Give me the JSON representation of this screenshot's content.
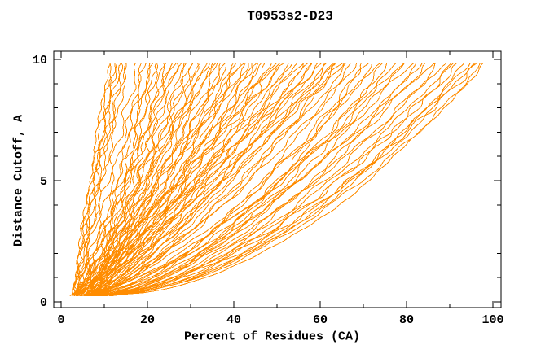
{
  "figure": {
    "title": "T0953s2-D23",
    "xlabel": "Percent of Residues (CA)",
    "ylabel": "Distance Cutoff, A"
  },
  "chart_data": {
    "type": "line",
    "title": "T0953s2-D23",
    "xlabel": "Percent of Residues (CA)",
    "ylabel": "Distance Cutoff, A",
    "xlim": [
      0,
      100
    ],
    "ylim": [
      0,
      10
    ],
    "x_major_ticks": [
      0,
      20,
      40,
      60,
      80,
      100
    ],
    "x_minor_ticks": [
      10,
      30,
      50,
      70,
      90
    ],
    "y_major_ticks": [
      0,
      5,
      10
    ],
    "y_minor_ticks": [
      1,
      2,
      3,
      4,
      6,
      7,
      8,
      9
    ],
    "grid": false,
    "legend": "none",
    "border_box": true,
    "ticks_inward_mirrored": true,
    "line_color": "#ff8c00",
    "axis_color": "#000000",
    "background": "#ffffff",
    "series_description": "Each orange curve is one predicted model of target T0953s2-D23: percent of CA residues (x) superimposable within the distance cutoff (y, Angstroms). Curves are approximated as [x_at_cutoff_0.25A, x_at_cutoff_9.85A, shape_exponent].",
    "curves": [
      [
        2.6,
        11,
        1.05
      ],
      [
        3.0,
        11.8,
        1.12
      ],
      [
        3.4,
        12.4,
        0.98
      ],
      [
        2.8,
        13,
        1.08
      ],
      [
        3.8,
        13.6,
        1.15
      ],
      [
        3.2,
        14.2,
        1.02
      ],
      [
        4.2,
        15,
        1.1
      ],
      [
        3.6,
        15.5,
        0.95
      ],
      [
        3,
        18,
        0.95
      ],
      [
        5.5,
        18.8,
        0.78
      ],
      [
        4,
        19.6,
        1.0
      ],
      [
        6.5,
        20.4,
        0.72
      ],
      [
        3.5,
        21.2,
        0.88
      ],
      [
        7,
        22,
        0.8
      ],
      [
        4.5,
        22.8,
        0.92
      ],
      [
        6,
        23.6,
        0.7
      ],
      [
        5,
        24.4,
        0.85
      ],
      [
        7.5,
        25.2,
        0.75
      ],
      [
        3,
        26,
        0.95
      ],
      [
        5.5,
        26.8,
        0.78
      ],
      [
        4,
        27.6,
        1.0
      ],
      [
        6.5,
        28.4,
        0.72
      ],
      [
        3.5,
        29.2,
        0.88
      ],
      [
        7,
        30,
        0.8
      ],
      [
        4.5,
        30.8,
        0.92
      ],
      [
        6,
        31.6,
        0.7
      ],
      [
        5,
        32.4,
        0.85
      ],
      [
        7.5,
        33.2,
        0.75
      ],
      [
        3,
        34,
        0.95
      ],
      [
        5.5,
        34.8,
        0.78
      ],
      [
        4,
        35.6,
        1.0
      ],
      [
        6.5,
        36.4,
        0.72
      ],
      [
        3.5,
        37.2,
        0.88
      ],
      [
        7,
        38,
        0.8
      ],
      [
        4.5,
        38.8,
        0.92
      ],
      [
        6,
        39.6,
        0.7
      ],
      [
        5,
        40.4,
        0.85
      ],
      [
        7.5,
        41.2,
        0.75
      ],
      [
        3,
        42,
        0.95
      ],
      [
        5.5,
        42.8,
        0.78
      ],
      [
        4,
        43.6,
        1.0
      ],
      [
        6.5,
        44.4,
        0.72
      ],
      [
        3.5,
        45.2,
        0.88
      ],
      [
        7,
        46,
        0.8
      ],
      [
        4.5,
        46.8,
        0.92
      ],
      [
        6,
        47.6,
        0.7
      ],
      [
        5,
        48.4,
        0.85
      ],
      [
        7.5,
        49.2,
        0.75
      ],
      [
        3,
        50,
        0.95
      ],
      [
        5.5,
        50.9,
        0.78
      ],
      [
        4,
        51.8,
        1.0
      ],
      [
        6.5,
        52.7,
        0.72
      ],
      [
        3.5,
        53.6,
        0.88
      ],
      [
        7,
        54.5,
        0.8
      ],
      [
        4.5,
        55.4,
        0.92
      ],
      [
        6,
        56.3,
        0.7
      ],
      [
        5,
        57.2,
        0.85
      ],
      [
        7.5,
        58.1,
        0.75
      ],
      [
        3,
        59,
        0.95
      ],
      [
        5.5,
        59.8,
        0.78
      ],
      [
        4,
        60.6,
        1.0
      ],
      [
        6.5,
        61.4,
        0.72
      ],
      [
        3.5,
        62.2,
        0.88
      ],
      [
        7,
        63,
        0.8
      ],
      [
        4.5,
        63.8,
        0.92
      ],
      [
        6,
        64.4,
        0.7
      ],
      [
        5,
        64.8,
        0.85
      ],
      [
        7.5,
        65.2,
        0.75
      ],
      [
        5,
        66,
        0.68
      ],
      [
        8,
        67.2,
        0.6
      ],
      [
        6,
        68.5,
        0.72
      ],
      [
        9,
        69.8,
        0.56
      ],
      [
        7,
        71,
        0.66
      ],
      [
        10,
        72.2,
        0.62
      ],
      [
        5.5,
        73.5,
        0.7
      ],
      [
        8.5,
        74.8,
        0.58
      ],
      [
        6.5,
        76,
        0.64
      ],
      [
        9.5,
        77.2,
        0.6
      ],
      [
        5,
        78.5,
        0.68
      ],
      [
        8,
        79.8,
        0.6
      ],
      [
        6,
        81,
        0.72
      ],
      [
        9,
        82.2,
        0.56
      ],
      [
        7,
        83.5,
        0.66
      ],
      [
        10,
        84.8,
        0.62
      ],
      [
        5.5,
        86,
        0.7
      ],
      [
        8.5,
        87.5,
        0.58
      ],
      [
        6.5,
        89,
        0.64
      ],
      [
        9.5,
        90.2,
        0.6
      ],
      [
        7,
        91.2,
        0.55
      ],
      [
        10,
        92.3,
        0.6
      ],
      [
        8,
        93.5,
        0.52
      ],
      [
        11,
        94.6,
        0.58
      ],
      [
        9,
        95.6,
        0.54
      ],
      [
        12,
        96.6,
        0.62
      ],
      [
        8.5,
        97.5,
        0.5
      ],
      [
        10.5,
        98.2,
        0.56
      ]
    ]
  }
}
